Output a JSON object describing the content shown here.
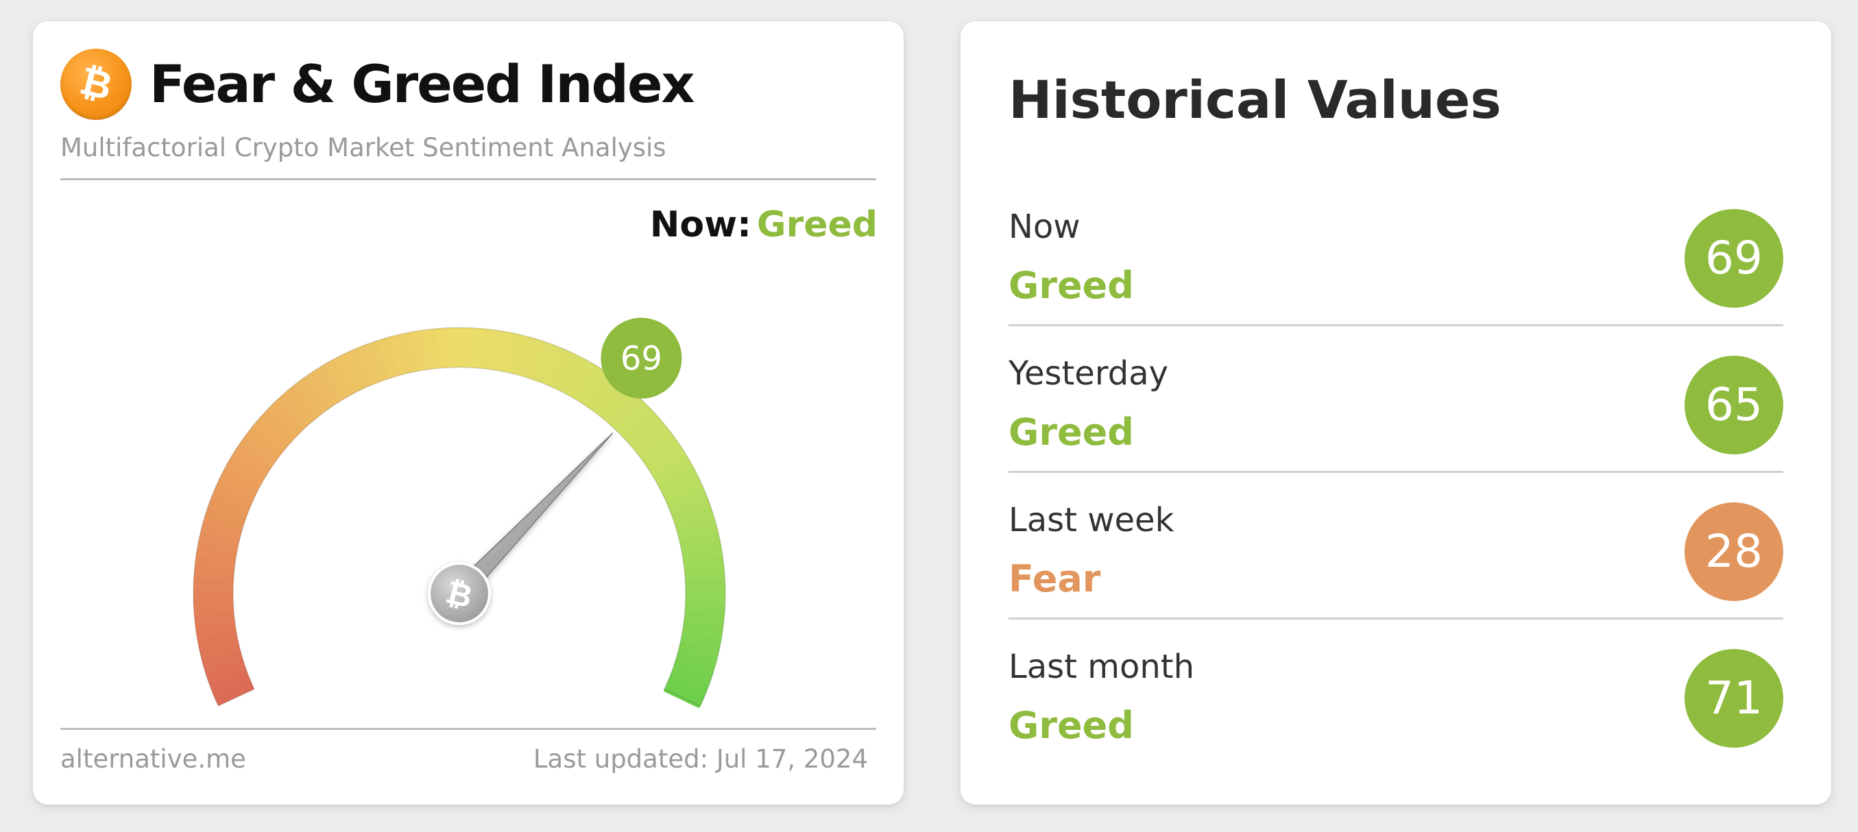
{
  "index_card": {
    "title": "Fear & Greed Index",
    "subtitle": "Multifactorial Crypto Market Sentiment Analysis",
    "logo_icon": "bitcoin-icon",
    "now_label": "Now:",
    "now_value": "Greed",
    "gauge_value": "69",
    "gauge_level": 69,
    "gauge_scale": [
      0,
      100
    ],
    "footer_source": "alternative.me",
    "footer_updated": "Last updated: Jul 17, 2024"
  },
  "historical": {
    "title": "Historical Values",
    "rows": [
      {
        "period": "Now",
        "classification": "Greed",
        "value": "69",
        "tone": "greed"
      },
      {
        "period": "Yesterday",
        "classification": "Greed",
        "value": "65",
        "tone": "greed"
      },
      {
        "period": "Last week",
        "classification": "Fear",
        "value": "28",
        "tone": "fear"
      },
      {
        "period": "Last month",
        "classification": "Greed",
        "value": "71",
        "tone": "greed"
      }
    ]
  },
  "colors": {
    "greed": "#8fbb3e",
    "fear": "#e2965d",
    "bitcoin_orange": "#f7931a"
  }
}
